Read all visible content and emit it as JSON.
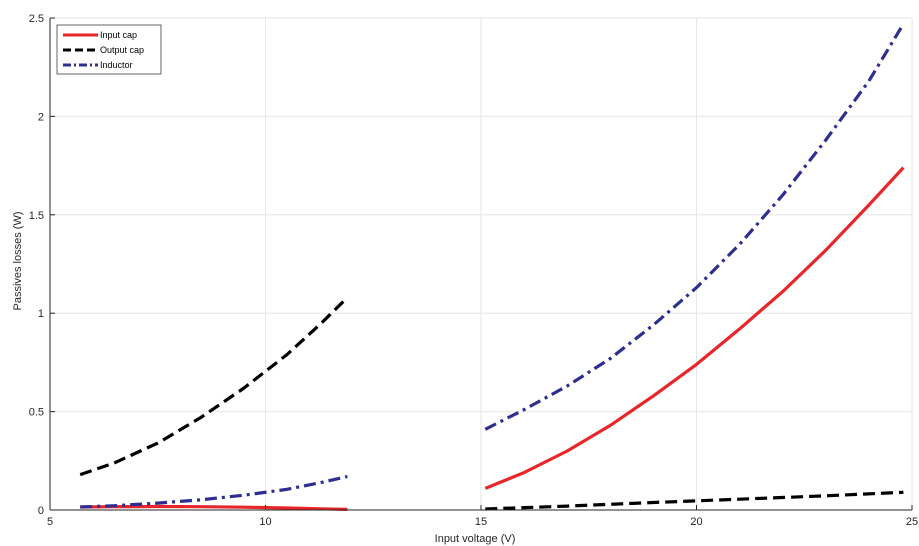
{
  "chart_data": {
    "type": "line",
    "xlabel": "Input voltage (V)",
    "ylabel": "Passives losses (W)",
    "xlim": [
      5,
      25
    ],
    "ylim": [
      0,
      2.5
    ],
    "xticks": [
      5,
      10,
      15,
      20,
      25
    ],
    "yticks": [
      0,
      0.5,
      1,
      1.5,
      2,
      2.5
    ],
    "xtick_labels": [
      "5",
      "10",
      "15",
      "20",
      "25"
    ],
    "ytick_labels": [
      "0",
      "0.5",
      "1",
      "1.5",
      "2",
      "2.5"
    ],
    "grid": true,
    "legend_position": "top-left",
    "series": [
      {
        "name": "Input cap",
        "color": "#e8262a",
        "dash": "solid",
        "segments": [
          {
            "x": [
              5.7,
              6.5,
              7.5,
              8.5,
              9.5,
              10.5,
              11.3,
              11.9
            ],
            "y": [
              0.015,
              0.017,
              0.018,
              0.017,
              0.014,
              0.01,
              0.006,
              0.003
            ]
          },
          {
            "x": [
              15.1,
              16,
              17,
              18,
              19,
              20,
              21,
              22,
              23,
              24,
              24.8
            ],
            "y": [
              0.11,
              0.19,
              0.3,
              0.43,
              0.58,
              0.74,
              0.92,
              1.11,
              1.32,
              1.55,
              1.74
            ]
          }
        ]
      },
      {
        "name": "Output cap",
        "color": "#000000",
        "dash": "dashed",
        "segments": [
          {
            "x": [
              5.7,
              6.5,
              7.5,
              8.5,
              9.5,
              10.5,
              11.3,
              11.9
            ],
            "y": [
              0.18,
              0.24,
              0.34,
              0.47,
              0.62,
              0.79,
              0.95,
              1.08
            ]
          },
          {
            "x": [
              15.1,
              17,
              19,
              21,
              23,
              24.8
            ],
            "y": [
              0.005,
              0.02,
              0.038,
              0.055,
              0.072,
              0.09
            ]
          }
        ]
      },
      {
        "name": "Inductor",
        "color": "#2e2e91",
        "dash": "dash-dot",
        "segments": [
          {
            "x": [
              5.7,
              6.5,
              7.5,
              8.5,
              9.5,
              10.5,
              11.3,
              11.9
            ],
            "y": [
              0.015,
              0.022,
              0.035,
              0.052,
              0.075,
              0.105,
              0.14,
              0.17
            ]
          },
          {
            "x": [
              15.1,
              16,
              17,
              18,
              19,
              20,
              21,
              22,
              23,
              24,
              24.8
            ],
            "y": [
              0.41,
              0.51,
              0.63,
              0.77,
              0.94,
              1.13,
              1.35,
              1.6,
              1.88,
              2.18,
              2.47
            ]
          }
        ]
      }
    ]
  }
}
